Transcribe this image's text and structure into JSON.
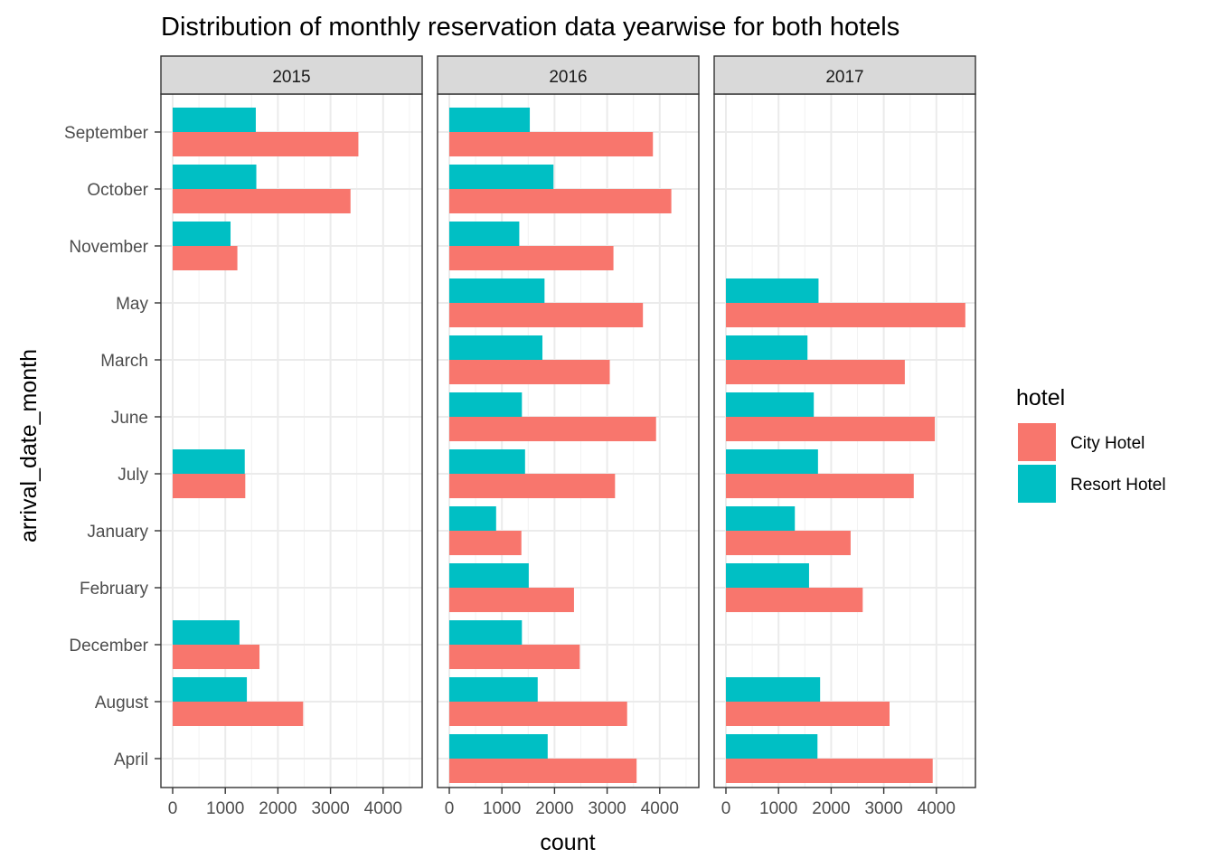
{
  "chart_data": {
    "type": "bar",
    "orientation": "horizontal",
    "title": "Distribution of monthly reservation data yearwise for both hotels",
    "xlabel": "count",
    "ylabel": "arrival_date_month",
    "xlim": [
      0,
      4600
    ],
    "x_ticks": [
      0,
      1000,
      2000,
      3000,
      4000
    ],
    "x_tick_labels": [
      "0",
      "1000",
      "2000",
      "3000",
      "4000"
    ],
    "categories": [
      "September",
      "October",
      "November",
      "May",
      "March",
      "June",
      "July",
      "January",
      "February",
      "December",
      "August",
      "April"
    ],
    "legend": {
      "title": "hotel",
      "placement": "right",
      "entries": [
        {
          "label": "City Hotel",
          "color": "#F8766D"
        },
        {
          "label": "Resort Hotel",
          "color": "#00BFC4"
        }
      ]
    },
    "grid": true,
    "facets": [
      {
        "label": "2015",
        "series": [
          {
            "name": "City Hotel",
            "values": [
              3530,
              3380,
              1230,
              null,
              null,
              null,
              1380,
              null,
              null,
              1650,
              2480,
              null
            ]
          },
          {
            "name": "Resort Hotel",
            "values": [
              1580,
              1590,
              1100,
              null,
              null,
              null,
              1370,
              null,
              null,
              1270,
              1410,
              null
            ]
          }
        ]
      },
      {
        "label": "2016",
        "series": [
          {
            "name": "City Hotel",
            "values": [
              3870,
              4220,
              3120,
              3680,
              3050,
              3930,
              3150,
              1370,
              2370,
              2480,
              3380,
              3560
            ]
          },
          {
            "name": "Resort Hotel",
            "values": [
              1530,
              1980,
              1330,
              1810,
              1770,
              1380,
              1440,
              890,
              1510,
              1380,
              1680,
              1870
            ]
          }
        ]
      },
      {
        "label": "2017",
        "series": [
          {
            "name": "City Hotel",
            "values": [
              null,
              null,
              null,
              4550,
              3400,
              3970,
              3570,
              2370,
              2600,
              null,
              3110,
              3930
            ]
          },
          {
            "name": "Resort Hotel",
            "values": [
              null,
              null,
              null,
              1760,
              1550,
              1670,
              1750,
              1310,
              1580,
              null,
              1790,
              1740
            ]
          }
        ]
      }
    ]
  }
}
